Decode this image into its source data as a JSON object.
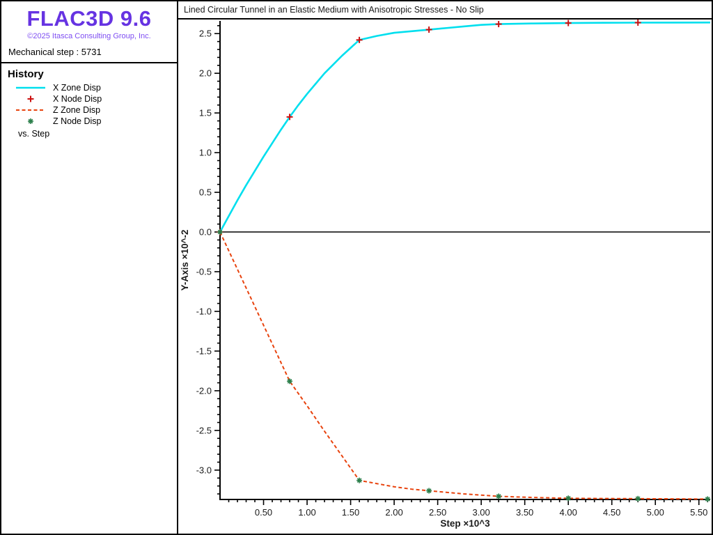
{
  "sidebar": {
    "logo": "FLAC3D 9.6",
    "copyright": "©2025 Itasca Consulting Group, Inc.",
    "mechanical_step": "Mechanical step : 5731",
    "history_title": "History",
    "legend": [
      {
        "label": "X Zone Disp",
        "symbol": "solid-line",
        "color": "#00dfee"
      },
      {
        "label": "X Node Disp",
        "symbol": "plus",
        "color": "#cc1111"
      },
      {
        "label": "Z Zone Disp",
        "symbol": "dashed-line",
        "color": "#e8430e"
      },
      {
        "label": "Z Node Disp",
        "symbol": "asterisk",
        "color": "#2a7e4a"
      }
    ],
    "vs_label": "vs. Step"
  },
  "colors": {
    "logo": "#6633e2",
    "copyright": "#7d4cf2",
    "axis": "#000000",
    "tick_text": "#1a1a1a"
  },
  "chart_data": {
    "type": "line",
    "title": "Lined Circular Tunnel in an Elastic Medium with Anisotropic Stresses - No Slip",
    "xlabel": "Step ×10^3",
    "ylabel": "Y-Axis ×10^-2",
    "xlim": [
      0,
      5.63
    ],
    "ylim": [
      -3.37,
      2.66
    ],
    "grid": false,
    "zero_line": true,
    "legend_position": "left-panel",
    "x_major_ticks": [
      0.5,
      1.0,
      1.5,
      2.0,
      2.5,
      3.0,
      3.5,
      4.0,
      4.5,
      5.0,
      5.5
    ],
    "x_tick_labels": [
      "0.50",
      "1.00",
      "1.50",
      "2.00",
      "2.50",
      "3.00",
      "3.50",
      "4.00",
      "4.50",
      "5.00",
      "5.50"
    ],
    "y_major_ticks": [
      2.5,
      2.0,
      1.5,
      1.0,
      0.5,
      0.0,
      -0.5,
      -1.0,
      -1.5,
      -2.0,
      -2.5,
      -3.0
    ],
    "y_tick_labels": [
      "2.5",
      "2.0",
      "1.5",
      "1.0",
      "0.5",
      "0.0",
      "-0.5",
      "-1.0",
      "-1.5",
      "-2.0",
      "-2.5",
      "-3.0"
    ],
    "minor_tick_step": 0.1,
    "series": [
      {
        "name": "X Zone Disp",
        "mode": "line",
        "color": "#00dfee",
        "width": 2.6,
        "x": [
          0,
          0.1,
          0.2,
          0.3,
          0.4,
          0.5,
          0.6,
          0.7,
          0.8,
          0.9,
          1.0,
          1.1,
          1.2,
          1.3,
          1.4,
          1.5,
          1.6,
          1.8,
          2.0,
          2.2,
          2.4,
          2.6,
          2.8,
          3.0,
          3.2,
          3.6,
          4.0,
          4.4,
          4.8,
          5.2,
          5.63
        ],
        "y": [
          0,
          0.2,
          0.4,
          0.59,
          0.77,
          0.95,
          1.12,
          1.29,
          1.45,
          1.6,
          1.74,
          1.87,
          2.0,
          2.11,
          2.22,
          2.32,
          2.42,
          2.47,
          2.51,
          2.53,
          2.55,
          2.57,
          2.59,
          2.61,
          2.62,
          2.628,
          2.633,
          2.636,
          2.638,
          2.639,
          2.64
        ]
      },
      {
        "name": "X Node Disp",
        "mode": "markers",
        "marker": "plus",
        "color": "#cc1111",
        "x": [
          0,
          0.8,
          1.6,
          2.4,
          3.2,
          4.0,
          4.8
        ],
        "y": [
          0,
          1.45,
          2.42,
          2.55,
          2.62,
          2.633,
          2.638
        ]
      },
      {
        "name": "Z Zone Disp",
        "mode": "line",
        "color": "#e8430e",
        "width": 2,
        "dash": "5 3.5",
        "x": [
          0,
          0.2,
          0.4,
          0.6,
          0.8,
          1.0,
          1.2,
          1.4,
          1.6,
          1.8,
          2.0,
          2.2,
          2.4,
          2.8,
          3.2,
          3.6,
          4.0,
          4.4,
          4.8,
          5.2,
          5.63
        ],
        "y": [
          0,
          -0.47,
          -0.94,
          -1.41,
          -1.88,
          -2.19,
          -2.51,
          -2.82,
          -3.13,
          -3.17,
          -3.21,
          -3.24,
          -3.26,
          -3.3,
          -3.33,
          -3.345,
          -3.355,
          -3.358,
          -3.36,
          -3.362,
          -3.365
        ]
      },
      {
        "name": "Z Node Disp",
        "mode": "markers",
        "marker": "asterisk",
        "color": "#2a7e4a",
        "x": [
          0,
          0.8,
          1.6,
          2.4,
          3.2,
          4.0,
          4.8,
          5.6
        ],
        "y": [
          0,
          -1.88,
          -3.13,
          -3.26,
          -3.33,
          -3.355,
          -3.36,
          -3.365
        ]
      }
    ]
  }
}
